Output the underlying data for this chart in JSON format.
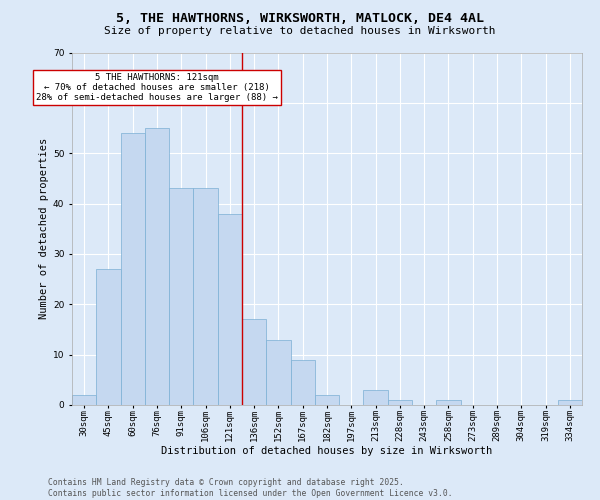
{
  "title": "5, THE HAWTHORNS, WIRKSWORTH, MATLOCK, DE4 4AL",
  "subtitle": "Size of property relative to detached houses in Wirksworth",
  "xlabel": "Distribution of detached houses by size in Wirksworth",
  "ylabel": "Number of detached properties",
  "categories": [
    "30sqm",
    "45sqm",
    "60sqm",
    "76sqm",
    "91sqm",
    "106sqm",
    "121sqm",
    "136sqm",
    "152sqm",
    "167sqm",
    "182sqm",
    "197sqm",
    "213sqm",
    "228sqm",
    "243sqm",
    "258sqm",
    "273sqm",
    "289sqm",
    "304sqm",
    "319sqm",
    "334sqm"
  ],
  "values": [
    2,
    27,
    54,
    55,
    43,
    43,
    38,
    17,
    13,
    9,
    2,
    0,
    3,
    1,
    0,
    1,
    0,
    0,
    0,
    0,
    1
  ],
  "bar_color": "#c5d8f0",
  "bar_edge_color": "#7bafd4",
  "highlight_index": 6,
  "highlight_line_color": "#cc0000",
  "ylim": [
    0,
    70
  ],
  "yticks": [
    0,
    10,
    20,
    30,
    40,
    50,
    60,
    70
  ],
  "annotation_text": "5 THE HAWTHORNS: 121sqm\n← 70% of detached houses are smaller (218)\n28% of semi-detached houses are larger (88) →",
  "annotation_box_color": "#ffffff",
  "annotation_box_edge": "#cc0000",
  "footer_text": "Contains HM Land Registry data © Crown copyright and database right 2025.\nContains public sector information licensed under the Open Government Licence v3.0.",
  "background_color": "#dce9f8",
  "axes_background": "#dce9f8",
  "title_fontsize": 9.5,
  "subtitle_fontsize": 8,
  "axis_label_fontsize": 7.5,
  "tick_fontsize": 6.5,
  "footer_fontsize": 5.8,
  "annotation_fontsize": 6.5
}
